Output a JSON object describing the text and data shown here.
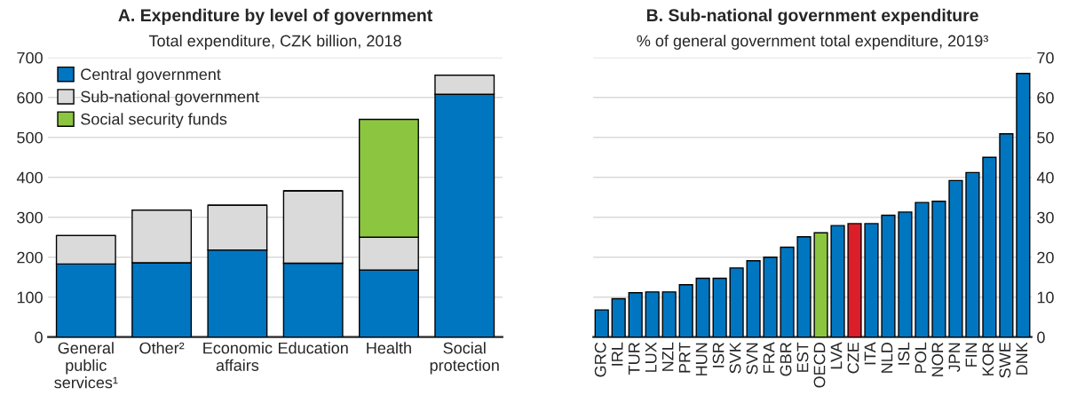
{
  "chart_data": [
    {
      "type": "bar",
      "title": "A. Expenditure by level of government",
      "subtitle": "Total expenditure, CZK billion, 2018",
      "stacked": true,
      "categories": [
        "General\npublic\nservices¹",
        "Other²",
        "Economic\naffairs",
        "Education",
        "Health",
        "Social\nprotection"
      ],
      "series": [
        {
          "name": "Central government",
          "color": "#0076c0",
          "values": [
            183,
            186,
            218,
            185,
            168,
            608
          ]
        },
        {
          "name": "Sub-national government",
          "color": "#dadada",
          "values": [
            71,
            132,
            112,
            181,
            82,
            48
          ]
        },
        {
          "name": "Social security funds",
          "color": "#8cc641",
          "values": [
            null,
            null,
            null,
            null,
            295,
            null
          ]
        }
      ],
      "ylim": [
        0,
        700
      ],
      "yticks": [
        0,
        100,
        200,
        300,
        400,
        500,
        600,
        700
      ],
      "grid": "y",
      "legend": "top left"
    },
    {
      "type": "bar",
      "title": "B. Sub-national government expenditure",
      "subtitle": "% of general government total expenditure, 2019³",
      "categories": [
        "GRC",
        "IRL",
        "TUR",
        "LUX",
        "NZL",
        "PRT",
        "HUN",
        "ISR",
        "SVK",
        "SVN",
        "FRA",
        "GBR",
        "EST",
        "OECD",
        "LVA",
        "CZE",
        "ITA",
        "NLD",
        "ISL",
        "POL",
        "NOR",
        "JPN",
        "FIN",
        "KOR",
        "SWE",
        "DNK"
      ],
      "values": [
        6.8,
        9.6,
        11.1,
        11.3,
        11.3,
        13.1,
        14.7,
        14.7,
        17.3,
        19.1,
        20.0,
        22.5,
        25.1,
        26.1,
        27.9,
        28.4,
        28.4,
        30.5,
        31.3,
        33.7,
        34.0,
        39.2,
        41.2,
        45.0,
        50.9,
        66.0
      ],
      "colors": [
        "#0076c0",
        "#0076c0",
        "#0076c0",
        "#0076c0",
        "#0076c0",
        "#0076c0",
        "#0076c0",
        "#0076c0",
        "#0076c0",
        "#0076c0",
        "#0076c0",
        "#0076c0",
        "#0076c0",
        "#8cc641",
        "#0076c0",
        "#dc1e28",
        "#0076c0",
        "#0076c0",
        "#0076c0",
        "#0076c0",
        "#0076c0",
        "#0076c0",
        "#0076c0",
        "#0076c0",
        "#0076c0",
        "#0076c0"
      ],
      "ylim": [
        0,
        70
      ],
      "yticks": [
        0,
        10,
        20,
        30,
        40,
        50,
        60,
        70
      ],
      "grid": "y"
    }
  ]
}
